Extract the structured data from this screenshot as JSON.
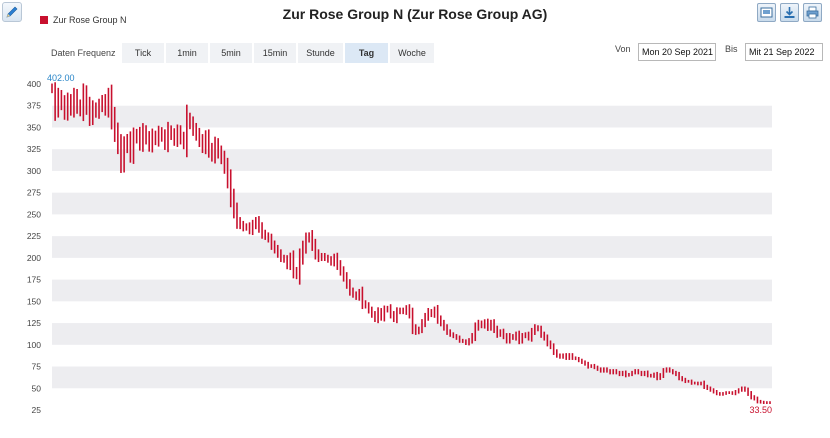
{
  "header": {
    "title": "Zur Rose Group N (Zur Rose Group AG)",
    "legend_label": "Zur Rose Group N"
  },
  "toolbar": {
    "icons": [
      "edit-icon",
      "save-image-icon",
      "download-icon",
      "print-icon"
    ]
  },
  "frequency": {
    "label": "Daten Frequenz",
    "tabs": [
      {
        "label": "Tick",
        "active": false
      },
      {
        "label": "1min",
        "active": false
      },
      {
        "label": "5min",
        "active": false
      },
      {
        "label": "15min",
        "active": false
      },
      {
        "label": "Stunde",
        "active": false
      },
      {
        "label": "Tag",
        "active": true
      },
      {
        "label": "Woche",
        "active": false
      }
    ]
  },
  "date_range": {
    "from_label": "Von",
    "from_value": "Mon 20 Sep 2021",
    "to_label": "Bis",
    "to_value": "Mit 21 Sep 2022"
  },
  "colors": {
    "series": "#c8102e",
    "band": "#ededf0",
    "max_marker": "#2a86c8"
  },
  "chart_data": {
    "type": "ohlc",
    "title": "",
    "series_name": "Zur Rose Group N",
    "y_ticks": [
      25,
      50,
      75,
      100,
      125,
      150,
      175,
      200,
      225,
      250,
      275,
      300,
      325,
      350,
      375,
      400
    ],
    "ylim": [
      25,
      405
    ],
    "grid": "alternating horizontal bands",
    "max_label": "402.00",
    "last_label": "33.50",
    "start_date": "20 Sep 2021",
    "end_date": "21 Sep 2022",
    "closes": [
      395,
      372,
      385,
      378,
      368,
      380,
      372,
      385,
      375,
      370,
      388,
      375,
      362,
      372,
      368,
      375,
      380,
      372,
      385,
      362,
      345,
      330,
      310,
      328,
      335,
      320,
      338,
      342,
      332,
      345,
      338,
      330,
      340,
      336,
      344,
      340,
      332,
      346,
      342,
      336,
      345,
      338,
      332,
      360,
      355,
      348,
      342,
      335,
      328,
      338,
      325,
      318,
      330,
      322,
      315,
      305,
      290,
      270,
      255,
      242,
      238,
      235,
      236,
      232,
      238,
      242,
      235,
      228,
      225,
      222,
      215,
      210,
      205,
      200,
      198,
      192,
      200,
      185,
      180,
      200,
      212,
      222,
      225,
      215,
      205,
      200,
      202,
      200,
      198,
      195,
      200,
      192,
      185,
      178,
      170,
      162,
      158,
      155,
      160,
      148,
      145,
      140,
      135,
      130,
      138,
      132,
      140,
      142,
      135,
      130,
      138,
      140,
      138,
      142,
      135,
      120,
      115,
      118,
      125,
      132,
      138,
      135,
      140,
      130,
      125,
      120,
      115,
      112,
      110,
      108,
      105,
      104,
      102,
      105,
      110,
      120,
      125,
      122,
      126,
      120,
      125,
      118,
      112,
      115,
      110,
      105,
      110,
      108,
      112,
      105,
      110,
      112,
      108,
      115,
      120,
      118,
      112,
      108,
      102,
      98,
      92,
      88,
      86,
      88,
      85,
      88,
      85,
      84,
      82,
      80,
      78,
      75,
      76,
      74,
      72,
      70,
      72,
      70,
      68,
      70,
      68,
      66,
      68,
      65,
      66,
      68,
      70,
      68,
      66,
      68,
      65,
      64,
      66,
      62,
      65,
      70,
      72,
      70,
      68,
      66,
      62,
      60,
      58,
      58,
      56,
      56,
      55,
      56,
      52,
      50,
      48,
      46,
      44,
      43,
      44,
      45,
      45,
      44,
      46,
      48,
      50,
      48,
      44,
      40,
      38,
      35,
      34,
      33.5,
      33.5,
      33.5
    ]
  }
}
